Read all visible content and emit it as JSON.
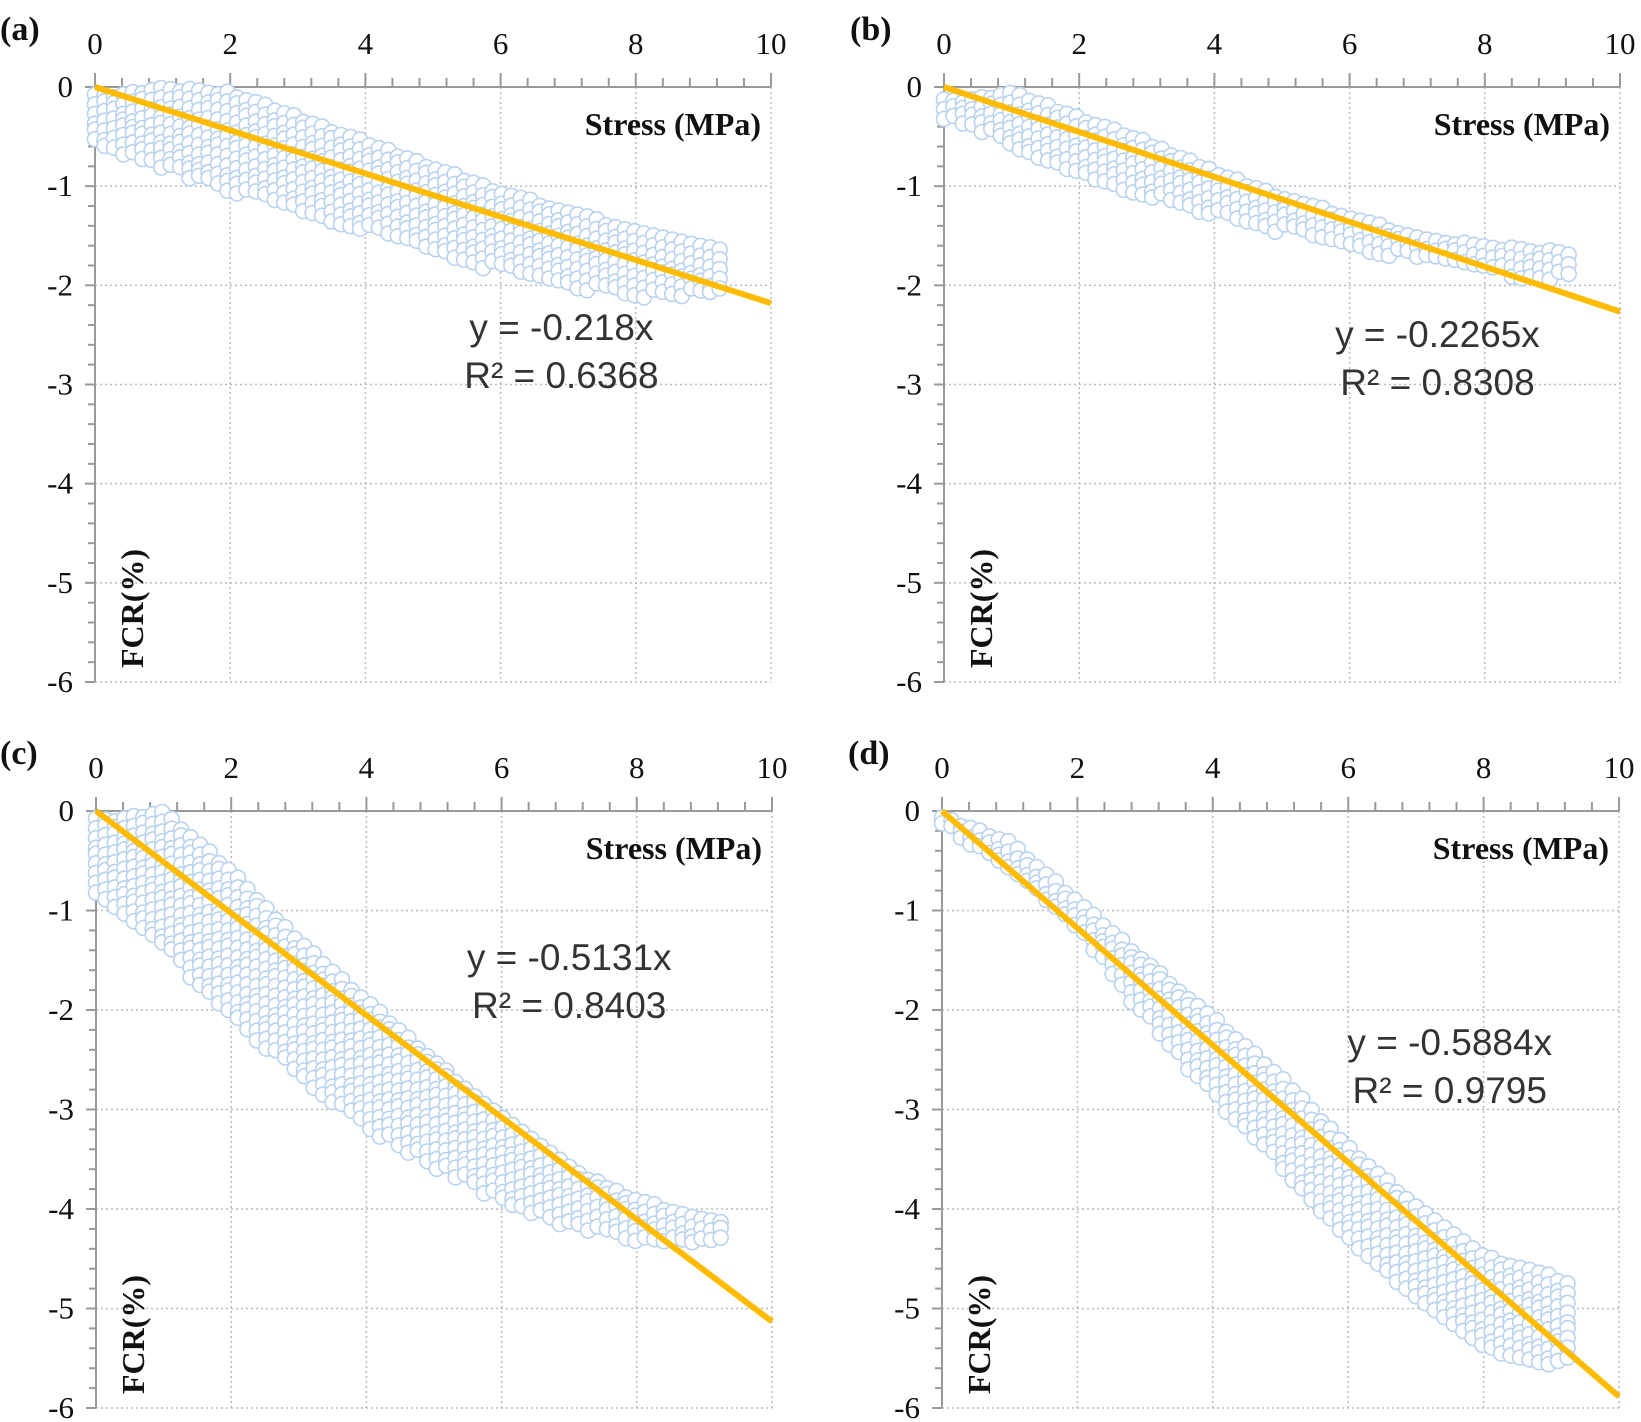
{
  "colors": {
    "points_stroke": "#b9d3ee",
    "points_fill": "#ffffff",
    "trendline": "#ffbb00",
    "axis": "#999999",
    "grid": "#bbbbbb"
  },
  "chart_data": [
    {
      "panel": "(a)",
      "type": "scatter",
      "xlabel": "Stress (MPa)",
      "ylabel": "FCR(%)",
      "xlim": [
        0,
        10
      ],
      "ylim": [
        -6,
        0
      ],
      "xticks": [
        "0",
        "2",
        "4",
        "6",
        "8",
        "10"
      ],
      "yticks": [
        "0",
        "-1",
        "-2",
        "-3",
        "-4",
        "-5",
        "-6"
      ],
      "x_axis_position": "top",
      "grid": true,
      "band_x": [
        0,
        1,
        2,
        3,
        4,
        5,
        6,
        7,
        8,
        9,
        9.3
      ],
      "band_top": [
        -0.1,
        0,
        -0.05,
        -0.3,
        -0.55,
        -0.8,
        -1.05,
        -1.25,
        -1.45,
        -1.6,
        -1.65
      ],
      "band_bottom": [
        -0.6,
        -0.85,
        -1.05,
        -1.25,
        -1.45,
        -1.65,
        -1.85,
        -2.0,
        -2.1,
        -2.1,
        -2.05
      ],
      "trendline": {
        "slope": -0.218,
        "equation": "y = -0.218x",
        "r2": "R² = 0.6368"
      }
    },
    {
      "panel": "(b)",
      "type": "scatter",
      "xlabel": "Stress (MPa)",
      "ylabel": "FCR(%)",
      "xlim": [
        0,
        10
      ],
      "ylim": [
        -6,
        0
      ],
      "xticks": [
        "0",
        "2",
        "4",
        "6",
        "8",
        "10"
      ],
      "yticks": [
        "0",
        "-1",
        "-2",
        "-3",
        "-4",
        "-5",
        "-6"
      ],
      "x_axis_position": "top",
      "grid": true,
      "band_x": [
        0,
        1,
        2,
        3,
        4,
        5,
        6,
        7,
        8,
        9,
        9.3
      ],
      "band_top": [
        -0.15,
        -0.05,
        -0.3,
        -0.55,
        -0.85,
        -1.1,
        -1.3,
        -1.5,
        -1.6,
        -1.65,
        -1.7
      ],
      "band_bottom": [
        -0.35,
        -0.6,
        -0.85,
        -1.1,
        -1.3,
        -1.45,
        -1.6,
        -1.75,
        -1.85,
        -1.95,
        -1.85
      ],
      "trendline": {
        "slope": -0.2265,
        "equation": "y = -0.2265x",
        "r2": "R² = 0.8308"
      }
    },
    {
      "panel": "(c)",
      "type": "scatter",
      "xlabel": "Stress (MPa)",
      "ylabel": "FCR(%)",
      "xlim": [
        0,
        10
      ],
      "ylim": [
        -6,
        0
      ],
      "xticks": [
        "0",
        "2",
        "4",
        "6",
        "8",
        "10"
      ],
      "yticks": [
        "0",
        "-1",
        "-2",
        "-3",
        "-4",
        "-5",
        "-6"
      ],
      "x_axis_position": "top",
      "grid": true,
      "band_x": [
        0,
        1,
        2,
        3,
        4,
        5,
        6,
        7,
        8,
        9,
        9.3
      ],
      "band_top": [
        -0.1,
        0,
        -0.6,
        -1.3,
        -1.9,
        -2.5,
        -3.1,
        -3.6,
        -3.9,
        -4.1,
        -4.1
      ],
      "band_bottom": [
        -0.9,
        -1.4,
        -2.1,
        -2.7,
        -3.2,
        -3.6,
        -3.95,
        -4.2,
        -4.35,
        -4.35,
        -4.3
      ],
      "trendline": {
        "slope": -0.5131,
        "equation": "y = -0.5131x",
        "r2": "R² = 0.8403"
      }
    },
    {
      "panel": "(d)",
      "type": "scatter",
      "xlabel": "Stress (MPa)",
      "ylabel": "FCR(%)",
      "xlim": [
        0,
        10
      ],
      "ylim": [
        -6,
        0
      ],
      "xticks": [
        "0",
        "2",
        "4",
        "6",
        "8",
        "10"
      ],
      "yticks": [
        "0",
        "-1",
        "-2",
        "-3",
        "-4",
        "-5",
        "-6"
      ],
      "x_axis_position": "top",
      "grid": true,
      "band_x": [
        0,
        1,
        2,
        3,
        4,
        5,
        6,
        7,
        8,
        9,
        9.3
      ],
      "band_top": [
        -0.05,
        -0.3,
        -0.9,
        -1.5,
        -2.1,
        -2.7,
        -3.4,
        -4.0,
        -4.5,
        -4.7,
        -4.8
      ],
      "band_bottom": [
        -0.2,
        -0.6,
        -1.2,
        -2.1,
        -2.9,
        -3.6,
        -4.3,
        -4.9,
        -5.4,
        -5.6,
        -5.5
      ],
      "trendline": {
        "slope": -0.5884,
        "equation": "y = -0.5884x",
        "r2": "R² = 0.9795"
      }
    }
  ]
}
